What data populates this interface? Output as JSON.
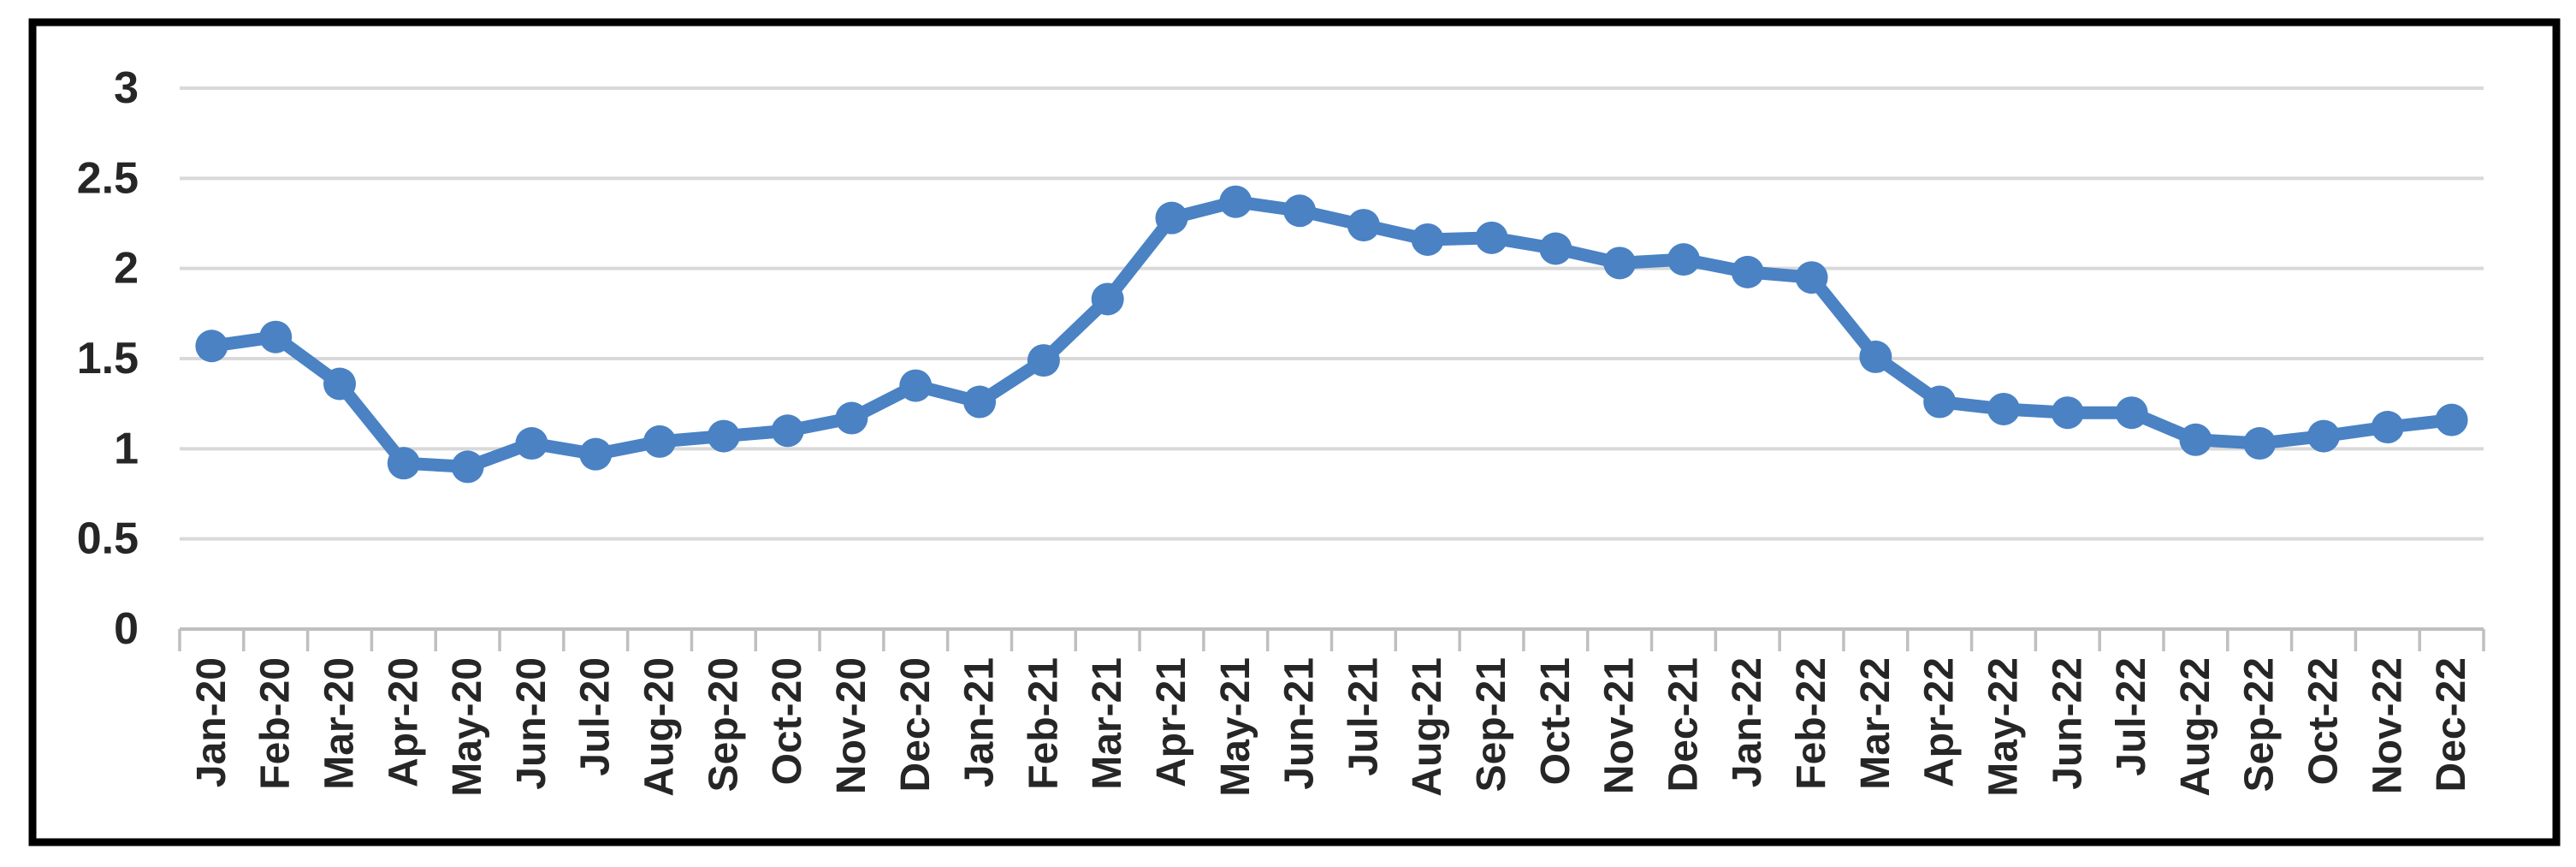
{
  "figure": {
    "background_color": "#ffffff",
    "border_color": "#000000"
  },
  "chart_data": {
    "type": "line",
    "title": "",
    "xlabel": "",
    "ylabel": "",
    "legend": "none",
    "grid": true,
    "marker": "circle",
    "line_color": "#4a82c4",
    "gridline_color": "#d9d9d9",
    "axis_color": "#bfbfbf",
    "label_color": "#262626",
    "ylim": [
      0,
      3
    ],
    "ytick_step": 0.5,
    "ytick_labels": [
      "0",
      "0.5",
      "1",
      "1.5",
      "2",
      "2.5",
      "3"
    ],
    "categories": [
      "Jan-20",
      "Feb-20",
      "Mar-20",
      "Apr-20",
      "May-20",
      "Jun-20",
      "Jul-20",
      "Aug-20",
      "Sep-20",
      "Oct-20",
      "Nov-20",
      "Dec-20",
      "Jan-21",
      "Feb-21",
      "Mar-21",
      "Apr-21",
      "May-21",
      "Jun-21",
      "Jul-21",
      "Aug-21",
      "Sep-21",
      "Oct-21",
      "Nov-21",
      "Dec-21",
      "Jan-22",
      "Feb-22",
      "Mar-22",
      "Apr-22",
      "May-22",
      "Jun-22",
      "Jul-22",
      "Aug-22",
      "Sep-22",
      "Oct-22",
      "Nov-22",
      "Dec-22"
    ],
    "series": [
      {
        "name": "",
        "values": [
          1.57,
          1.62,
          1.36,
          0.92,
          0.9,
          1.03,
          0.97,
          1.04,
          1.07,
          1.1,
          1.17,
          1.35,
          1.26,
          1.49,
          1.83,
          2.28,
          2.37,
          2.32,
          2.24,
          2.16,
          2.17,
          2.11,
          2.03,
          2.05,
          1.98,
          1.95,
          1.51,
          1.26,
          1.22,
          1.2,
          1.2,
          1.05,
          1.03,
          1.07,
          1.12,
          1.16
        ]
      }
    ]
  }
}
